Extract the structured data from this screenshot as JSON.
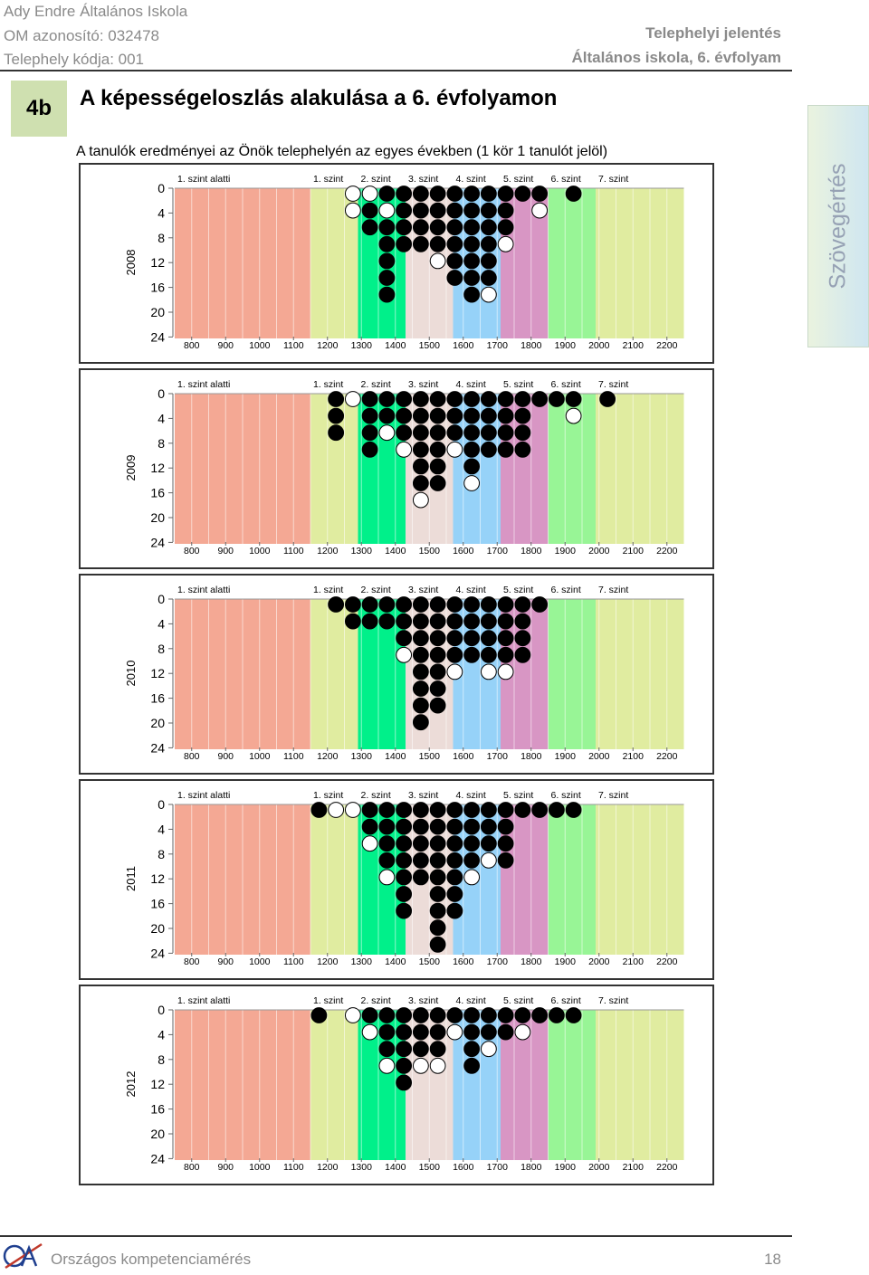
{
  "header": {
    "school": "Ady Endre Általános Iskola",
    "om": "OM azonosító: 032478",
    "site": "Telephely kódja: 001",
    "report": "Telephelyi jelentés",
    "grade": "Általános iskola, 6. évfolyam"
  },
  "section": {
    "number": "4b",
    "title": "A képességeloszlás alakulása a 6. évfolyamon",
    "subtitle": "A tanulók eredményei az Önök telephelyén az egyes években (1 kör 1 tanulót jelöl)"
  },
  "side_tab": "Szövegértés",
  "footer": {
    "org": "Országos kompetenciamérés",
    "page": "18"
  },
  "colors": {
    "band_colors": [
      "#f4a894",
      "#e0eca0",
      "#00f08a",
      "#ecdcd8",
      "#96d2f8",
      "#d896c4",
      "#98f596",
      "#e0eca0"
    ],
    "dot_filled": "#000000",
    "dot_open": "#ffffff"
  },
  "chart_data": [
    {
      "type": "scatter",
      "year": "2008",
      "x_ticks": [
        800,
        900,
        1000,
        1100,
        1200,
        1300,
        1400,
        1500,
        1600,
        1700,
        1800,
        1900,
        2000,
        2100,
        2200
      ],
      "y_ticks": [
        0,
        4,
        8,
        12,
        16,
        20,
        24
      ],
      "xlim": [
        750,
        2250
      ],
      "ylim": [
        0,
        24
      ],
      "bin_width": 50,
      "levels": [
        {
          "name": "1. szint alatti",
          "from": 750,
          "to": 1150
        },
        {
          "name": "1. szint",
          "from": 1150,
          "to": 1290
        },
        {
          "name": "2. szint",
          "from": 1290,
          "to": 1430
        },
        {
          "name": "3. szint",
          "from": 1430,
          "to": 1570
        },
        {
          "name": "4. szint",
          "from": 1570,
          "to": 1710
        },
        {
          "name": "5. szint",
          "from": 1710,
          "to": 1850
        },
        {
          "name": "6. szint",
          "from": 1850,
          "to": 1990
        },
        {
          "name": "7. szint",
          "from": 1990,
          "to": 2250
        }
      ],
      "columns": [
        {
          "x": 1275,
          "dots": "WW"
        },
        {
          "x": 1325,
          "dots": "WBB"
        },
        {
          "x": 1375,
          "dots": "BWBBBBB"
        },
        {
          "x": 1425,
          "dots": "BBBB"
        },
        {
          "x": 1475,
          "dots": "BBBB"
        },
        {
          "x": 1525,
          "dots": "BBBBW"
        },
        {
          "x": 1575,
          "dots": "BBBBBB"
        },
        {
          "x": 1625,
          "dots": "BBBBBBB"
        },
        {
          "x": 1675,
          "dots": "BBBBBBW"
        },
        {
          "x": 1725,
          "dots": "BBBW"
        },
        {
          "x": 1775,
          "dots": "B"
        },
        {
          "x": 1825,
          "dots": "BW"
        },
        {
          "x": 1925,
          "dots": "B"
        }
      ]
    },
    {
      "type": "scatter",
      "year": "2009",
      "x_ticks": [
        800,
        900,
        1000,
        1100,
        1200,
        1300,
        1400,
        1500,
        1600,
        1700,
        1800,
        1900,
        2000,
        2100,
        2200
      ],
      "y_ticks": [
        0,
        4,
        8,
        12,
        16,
        20,
        24
      ],
      "xlim": [
        750,
        2250
      ],
      "ylim": [
        0,
        24
      ],
      "bin_width": 50,
      "levels": [
        {
          "name": "1. szint alatti",
          "from": 750,
          "to": 1150
        },
        {
          "name": "1. szint",
          "from": 1150,
          "to": 1290
        },
        {
          "name": "2. szint",
          "from": 1290,
          "to": 1430
        },
        {
          "name": "3. szint",
          "from": 1430,
          "to": 1570
        },
        {
          "name": "4. szint",
          "from": 1570,
          "to": 1710
        },
        {
          "name": "5. szint",
          "from": 1710,
          "to": 1850
        },
        {
          "name": "6. szint",
          "from": 1850,
          "to": 1990
        },
        {
          "name": "7. szint",
          "from": 1990,
          "to": 2250
        }
      ],
      "columns": [
        {
          "x": 1225,
          "dots": "BBB"
        },
        {
          "x": 1275,
          "dots": "W"
        },
        {
          "x": 1325,
          "dots": "BBBB"
        },
        {
          "x": 1375,
          "dots": "BBW"
        },
        {
          "x": 1425,
          "dots": "BBBW"
        },
        {
          "x": 1475,
          "dots": "BBBBBBW"
        },
        {
          "x": 1525,
          "dots": "BBBBBB"
        },
        {
          "x": 1575,
          "dots": "BBBW"
        },
        {
          "x": 1625,
          "dots": "BBBBBW"
        },
        {
          "x": 1675,
          "dots": "BBBB"
        },
        {
          "x": 1725,
          "dots": "BBBB"
        },
        {
          "x": 1775,
          "dots": "BBBB"
        },
        {
          "x": 1825,
          "dots": "B"
        },
        {
          "x": 1875,
          "dots": "B"
        },
        {
          "x": 1925,
          "dots": "BW"
        },
        {
          "x": 2025,
          "dots": "B"
        }
      ]
    },
    {
      "type": "scatter",
      "year": "2010",
      "x_ticks": [
        800,
        900,
        1000,
        1100,
        1200,
        1300,
        1400,
        1500,
        1600,
        1700,
        1800,
        1900,
        2000,
        2100,
        2200
      ],
      "y_ticks": [
        0,
        4,
        8,
        12,
        16,
        20,
        24
      ],
      "xlim": [
        750,
        2250
      ],
      "ylim": [
        0,
        24
      ],
      "bin_width": 50,
      "levels": [
        {
          "name": "1. szint alatti",
          "from": 750,
          "to": 1150
        },
        {
          "name": "1. szint",
          "from": 1150,
          "to": 1290
        },
        {
          "name": "2. szint",
          "from": 1290,
          "to": 1430
        },
        {
          "name": "3. szint",
          "from": 1430,
          "to": 1570
        },
        {
          "name": "4. szint",
          "from": 1570,
          "to": 1710
        },
        {
          "name": "5. szint",
          "from": 1710,
          "to": 1850
        },
        {
          "name": "6. szint",
          "from": 1850,
          "to": 1990
        },
        {
          "name": "7. szint",
          "from": 1990,
          "to": 2250
        }
      ],
      "columns": [
        {
          "x": 1225,
          "dots": "B"
        },
        {
          "x": 1275,
          "dots": "BB"
        },
        {
          "x": 1325,
          "dots": "BB"
        },
        {
          "x": 1375,
          "dots": "BB"
        },
        {
          "x": 1425,
          "dots": "BBBW"
        },
        {
          "x": 1475,
          "dots": "BBBBBBBB"
        },
        {
          "x": 1525,
          "dots": "BBBBBBB"
        },
        {
          "x": 1575,
          "dots": "BBBBW"
        },
        {
          "x": 1625,
          "dots": "BBBB"
        },
        {
          "x": 1675,
          "dots": "BBBBW"
        },
        {
          "x": 1725,
          "dots": "BBBBW"
        },
        {
          "x": 1775,
          "dots": "BBBB"
        },
        {
          "x": 1825,
          "dots": "B"
        }
      ]
    },
    {
      "type": "scatter",
      "year": "2011",
      "x_ticks": [
        800,
        900,
        1000,
        1100,
        1200,
        1300,
        1400,
        1500,
        1600,
        1700,
        1800,
        1900,
        2000,
        2100,
        2200
      ],
      "y_ticks": [
        0,
        4,
        8,
        12,
        16,
        20,
        24
      ],
      "xlim": [
        750,
        2250
      ],
      "ylim": [
        0,
        24
      ],
      "bin_width": 50,
      "levels": [
        {
          "name": "1. szint alatti",
          "from": 750,
          "to": 1150
        },
        {
          "name": "1. szint",
          "from": 1150,
          "to": 1290
        },
        {
          "name": "2. szint",
          "from": 1290,
          "to": 1430
        },
        {
          "name": "3. szint",
          "from": 1430,
          "to": 1570
        },
        {
          "name": "4. szint",
          "from": 1570,
          "to": 1710
        },
        {
          "name": "5. szint",
          "from": 1710,
          "to": 1850
        },
        {
          "name": "6. szint",
          "from": 1850,
          "to": 1990
        },
        {
          "name": "7. szint",
          "from": 1990,
          "to": 2250
        }
      ],
      "columns": [
        {
          "x": 1175,
          "dots": "B"
        },
        {
          "x": 1225,
          "dots": "W"
        },
        {
          "x": 1275,
          "dots": "W"
        },
        {
          "x": 1325,
          "dots": "BBW"
        },
        {
          "x": 1375,
          "dots": "BBBBW"
        },
        {
          "x": 1425,
          "dots": "BBBBBBB"
        },
        {
          "x": 1475,
          "dots": "BBBBB"
        },
        {
          "x": 1525,
          "dots": "BBBBBBBBB"
        },
        {
          "x": 1575,
          "dots": "BBBBBBB"
        },
        {
          "x": 1625,
          "dots": "BBBBW"
        },
        {
          "x": 1675,
          "dots": "BBBW"
        },
        {
          "x": 1725,
          "dots": "BBBB"
        },
        {
          "x": 1775,
          "dots": "B"
        },
        {
          "x": 1825,
          "dots": "B"
        },
        {
          "x": 1875,
          "dots": "B"
        },
        {
          "x": 1925,
          "dots": "B"
        }
      ]
    },
    {
      "type": "scatter",
      "year": "2012",
      "x_ticks": [
        800,
        900,
        1000,
        1100,
        1200,
        1300,
        1400,
        1500,
        1600,
        1700,
        1800,
        1900,
        2000,
        2100,
        2200
      ],
      "y_ticks": [
        0,
        4,
        8,
        12,
        16,
        20,
        24
      ],
      "xlim": [
        750,
        2250
      ],
      "ylim": [
        0,
        24
      ],
      "bin_width": 50,
      "levels": [
        {
          "name": "1. szint alatti",
          "from": 750,
          "to": 1150
        },
        {
          "name": "1. szint",
          "from": 1150,
          "to": 1290
        },
        {
          "name": "2. szint",
          "from": 1290,
          "to": 1430
        },
        {
          "name": "3. szint",
          "from": 1430,
          "to": 1570
        },
        {
          "name": "4. szint",
          "from": 1570,
          "to": 1710
        },
        {
          "name": "5. szint",
          "from": 1710,
          "to": 1850
        },
        {
          "name": "6. szint",
          "from": 1850,
          "to": 1990
        },
        {
          "name": "7. szint",
          "from": 1990,
          "to": 2250
        }
      ],
      "columns": [
        {
          "x": 1175,
          "dots": "B"
        },
        {
          "x": 1275,
          "dots": "W"
        },
        {
          "x": 1325,
          "dots": "BW"
        },
        {
          "x": 1375,
          "dots": "BBBW"
        },
        {
          "x": 1425,
          "dots": "BBBBB"
        },
        {
          "x": 1475,
          "dots": "BBBW"
        },
        {
          "x": 1525,
          "dots": "BBBW"
        },
        {
          "x": 1575,
          "dots": "BW"
        },
        {
          "x": 1625,
          "dots": "BBBB"
        },
        {
          "x": 1675,
          "dots": "BBW"
        },
        {
          "x": 1725,
          "dots": "BB"
        },
        {
          "x": 1775,
          "dots": "BW"
        },
        {
          "x": 1825,
          "dots": "B"
        },
        {
          "x": 1875,
          "dots": "B"
        },
        {
          "x": 1925,
          "dots": "B"
        }
      ]
    }
  ]
}
